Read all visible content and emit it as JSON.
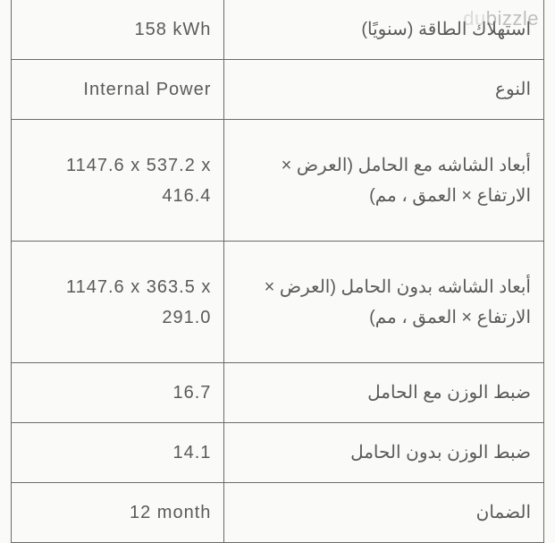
{
  "watermark": {
    "prefix": "du",
    "suffix": "bizzle"
  },
  "spec_table": {
    "type": "table",
    "border_color": "#6b6b6b",
    "text_color": "#5a5a5a",
    "background_color": "#fafaf8",
    "font_size": 20,
    "columns": [
      "value",
      "label"
    ],
    "col_widths": [
      "40%",
      "60%"
    ],
    "rows": [
      {
        "value": "158 kWh",
        "label": "استهلاك الطاقة (سنويًا)",
        "height": "short"
      },
      {
        "value": "Internal Power",
        "label": "النوع",
        "height": "mid"
      },
      {
        "value": "1147.6 x 537.2 x 416.4",
        "label": "أبعاد الشاشه مع الحامل (العرض × الارتفاع × العمق ، مم)",
        "height": "tall"
      },
      {
        "value": "1147.6 x 363.5 x 291.0",
        "label": "أبعاد الشاشه بدون الحامل (العرض × الارتفاع × العمق ، مم)",
        "height": "tall"
      },
      {
        "value": "16.7",
        "label": "ضبط الوزن مع الحامل",
        "height": "short"
      },
      {
        "value": "14.1",
        "label": "ضبط الوزن بدون الحامل",
        "height": "short"
      },
      {
        "value": "12 month",
        "label": "الضمان",
        "height": "short"
      }
    ]
  }
}
